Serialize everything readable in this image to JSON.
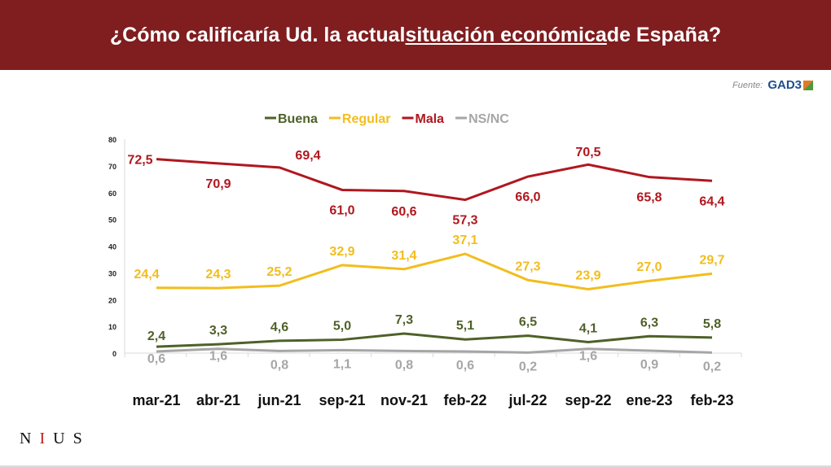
{
  "title": {
    "pre": "¿Cómo calificaría Ud. la actual ",
    "underlined": "situación económica ",
    "post": "de España?"
  },
  "source": {
    "label": "Fuente:",
    "logo": "GAD3"
  },
  "brand": {
    "n": "N",
    "i": "I",
    "us": "US"
  },
  "chart_data": {
    "type": "line",
    "categories": [
      "mar-21",
      "abr-21",
      "jun-21",
      "sep-21",
      "nov-21",
      "feb-22",
      "jul-22",
      "sep-22",
      "ene-23",
      "feb-23"
    ],
    "ylim": [
      0,
      80
    ],
    "yticks": [
      "0",
      "10",
      "20",
      "30",
      "40",
      "50",
      "60",
      "70",
      "80"
    ],
    "grid": false,
    "legend_position": "top",
    "series": [
      {
        "name": "Buena",
        "color": "#4e6128",
        "values": [
          2.4,
          3.3,
          4.6,
          5.0,
          7.3,
          5.1,
          6.5,
          4.1,
          6.3,
          5.8
        ],
        "labels": [
          "2,4",
          "3,3",
          "4,6",
          "5,0",
          "7,3",
          "5,1",
          "6,5",
          "4,1",
          "6,3",
          "5,8"
        ]
      },
      {
        "name": "Regular",
        "color": "#f2bd1d",
        "values": [
          24.4,
          24.3,
          25.2,
          32.9,
          31.4,
          37.1,
          27.3,
          23.9,
          27.0,
          29.7
        ],
        "labels": [
          "24,4",
          "24,3",
          "25,2",
          "32,9",
          "31,4",
          "37,1",
          "27,3",
          "23,9",
          "27,0",
          "29,7"
        ]
      },
      {
        "name": "Mala",
        "color": "#b0171f",
        "values": [
          72.5,
          70.9,
          69.4,
          61.0,
          60.6,
          57.3,
          66.0,
          70.5,
          65.8,
          64.4
        ],
        "labels": [
          "72,5",
          "70,9",
          "69,4",
          "61,0",
          "60,6",
          "57,3",
          "66,0",
          "70,5",
          "65,8",
          "64,4"
        ]
      },
      {
        "name": "NS/NC",
        "color": "#a6a6a6",
        "values": [
          0.6,
          1.6,
          0.8,
          1.1,
          0.8,
          0.6,
          0.2,
          1.6,
          0.9,
          0.2
        ],
        "labels": [
          "0,6",
          "1,6",
          "0,8",
          "1,1",
          "0,8",
          "0,6",
          "0,2",
          "1,6",
          "0,9",
          "0,2"
        ]
      }
    ]
  }
}
